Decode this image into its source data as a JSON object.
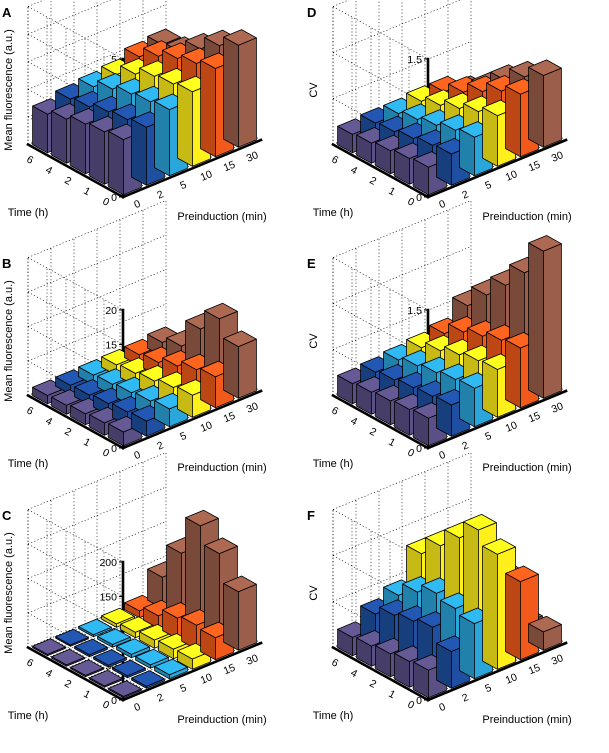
{
  "colors": [
    "#5a5086",
    "#1e4fa0",
    "#2aa6da",
    "#ffef1a",
    "#f25a1b",
    "#9b5e4a"
  ],
  "x_tick_labels": [
    "0",
    "2",
    "5",
    "10",
    "15",
    "30"
  ],
  "y_tick_labels": [
    "0",
    "1",
    "2",
    "4",
    "6"
  ],
  "chart_data": [
    {
      "panel": "A",
      "type": "bar3d",
      "zlabel": "Mean fluorescence (a.u.)",
      "xlabel": "Preinduction (min)",
      "ylabel": "Time (h)",
      "zlim": [
        0,
        5
      ],
      "zticks": [
        "0",
        "1",
        "2",
        "3",
        "4",
        "5"
      ],
      "categories": [
        "0",
        "2",
        "5",
        "10",
        "15",
        "30"
      ],
      "series": [
        {
          "name": "0",
          "values": [
            2.0,
            2.1,
            2.4,
            2.7,
            3.2,
            3.7
          ]
        },
        {
          "name": "1",
          "values": [
            1.9,
            2.0,
            2.3,
            2.6,
            3.0,
            3.3
          ]
        },
        {
          "name": "2",
          "values": [
            1.8,
            1.9,
            2.2,
            2.5,
            2.8,
            2.8
          ]
        },
        {
          "name": "4",
          "values": [
            1.6,
            1.7,
            2.0,
            2.2,
            2.5,
            2.3
          ]
        },
        {
          "name": "6",
          "values": [
            1.4,
            1.6,
            1.7,
            1.8,
            2.1,
            2.2
          ]
        }
      ]
    },
    {
      "panel": "D",
      "type": "bar3d",
      "zlabel": "CV",
      "xlabel": "Preinduction (min)",
      "ylabel": "Time (h)",
      "zlim": [
        0,
        1.5
      ],
      "zticks": [
        "0",
        "0.5",
        "1",
        "1.5"
      ],
      "categories": [
        "0",
        "2",
        "5",
        "10",
        "15",
        "30"
      ],
      "series": [
        {
          "name": "0",
          "values": [
            0.3,
            0.34,
            0.42,
            0.55,
            0.68,
            0.78
          ]
        },
        {
          "name": "1",
          "values": [
            0.28,
            0.32,
            0.38,
            0.48,
            0.6,
            0.65
          ]
        },
        {
          "name": "2",
          "values": [
            0.25,
            0.28,
            0.32,
            0.4,
            0.48,
            0.5
          ]
        },
        {
          "name": "4",
          "values": [
            0.22,
            0.24,
            0.27,
            0.32,
            0.36,
            0.3
          ]
        },
        {
          "name": "6",
          "values": [
            0.2,
            0.22,
            0.22,
            0.25,
            0.25,
            0.15
          ]
        }
      ]
    },
    {
      "panel": "B",
      "type": "bar3d",
      "zlabel": "Mean fluorescence (a.u.)",
      "xlabel": "Preinduction (min)",
      "ylabel": "Time (h)",
      "zlim": [
        0,
        20
      ],
      "zticks": [
        "0",
        "5",
        "10",
        "15",
        "20"
      ],
      "categories": [
        "0",
        "2",
        "5",
        "10",
        "15",
        "30"
      ],
      "series": [
        {
          "name": "0",
          "values": [
            2.0,
            2.2,
            2.6,
            3.2,
            4.5,
            7.5
          ]
        },
        {
          "name": "1",
          "values": [
            1.8,
            2.0,
            2.2,
            2.8,
            4.0,
            10.0
          ]
        },
        {
          "name": "2",
          "values": [
            1.6,
            1.7,
            1.9,
            2.2,
            3.0,
            7.0
          ]
        },
        {
          "name": "4",
          "values": [
            1.3,
            1.4,
            1.6,
            1.8,
            2.0,
            3.0
          ]
        },
        {
          "name": "6",
          "values": [
            1.2,
            1.3,
            1.4,
            1.5,
            1.6,
            2.0
          ]
        }
      ]
    },
    {
      "panel": "E",
      "type": "bar3d",
      "zlabel": "CV",
      "xlabel": "Preinduction (min)",
      "ylabel": "Time (h)",
      "zlim": [
        0,
        1.5
      ],
      "zticks": [
        "0",
        "0.5",
        "1",
        "1.5"
      ],
      "categories": [
        "0",
        "2",
        "5",
        "10",
        "15",
        "30"
      ],
      "series": [
        {
          "name": "0",
          "values": [
            0.3,
            0.34,
            0.42,
            0.52,
            0.65,
            1.6
          ]
        },
        {
          "name": "1",
          "values": [
            0.28,
            0.32,
            0.4,
            0.5,
            0.62,
            1.25
          ]
        },
        {
          "name": "2",
          "values": [
            0.26,
            0.3,
            0.36,
            0.45,
            0.55,
            1.0
          ]
        },
        {
          "name": "4",
          "values": [
            0.24,
            0.27,
            0.32,
            0.38,
            0.48,
            0.78
          ]
        },
        {
          "name": "6",
          "values": [
            0.22,
            0.24,
            0.27,
            0.3,
            0.35,
            0.55
          ]
        }
      ]
    },
    {
      "panel": "C",
      "type": "bar3d",
      "zlabel": "Mean fluorescence (a.u.)",
      "xlabel": "Preinduction (min)",
      "ylabel": "Time (h)",
      "zlim": [
        0,
        200
      ],
      "zticks": [
        "0",
        "50",
        "100",
        "150",
        "200"
      ],
      "categories": [
        "0",
        "2",
        "5",
        "10",
        "15",
        "30"
      ],
      "series": [
        {
          "name": "0",
          "values": [
            2,
            3,
            6,
            15,
            32,
            85
          ]
        },
        {
          "name": "1",
          "values": [
            2,
            3,
            5,
            14,
            35,
            125
          ]
        },
        {
          "name": "2",
          "values": [
            2,
            3,
            5,
            12,
            30,
            150
          ]
        },
        {
          "name": "4",
          "values": [
            2,
            3,
            4,
            8,
            18,
            95
          ]
        },
        {
          "name": "6",
          "values": [
            2,
            2,
            3,
            5,
            10,
            45
          ]
        }
      ]
    },
    {
      "panel": "F",
      "type": "bar3d",
      "zlabel": "CV",
      "xlabel": "Preinduction (min)",
      "ylabel": "Time (h)",
      "zlim": [
        0,
        1.5
      ],
      "zticks": [
        "0",
        "0.5",
        "1",
        "1.5"
      ],
      "categories": [
        "0",
        "2",
        "5",
        "10",
        "15",
        "30"
      ],
      "series": [
        {
          "name": "0",
          "values": [
            0.3,
            0.4,
            0.6,
            1.25,
            0.85,
            0.2
          ]
        },
        {
          "name": "1",
          "values": [
            0.28,
            0.55,
            0.65,
            1.4,
            0.8,
            0.18
          ]
        },
        {
          "name": "2",
          "values": [
            0.25,
            0.5,
            0.7,
            1.2,
            0.7,
            0.2
          ]
        },
        {
          "name": "4",
          "values": [
            0.22,
            0.45,
            0.6,
            1.0,
            0.55,
            0.15
          ]
        },
        {
          "name": "6",
          "values": [
            0.2,
            0.35,
            0.45,
            0.8,
            0.4,
            0.1
          ]
        }
      ]
    }
  ]
}
